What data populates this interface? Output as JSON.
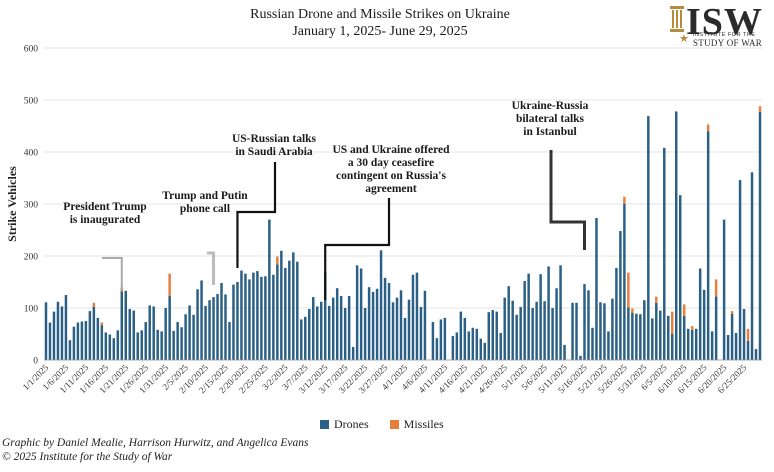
{
  "header": {
    "title_line1": "Russian Drone and Missile Strikes on Ukraine",
    "title_line2": "January 1, 2025- June 29, 2025"
  },
  "logo": {
    "main": "ISW",
    "sub1": "INSTITUTE FOR THE",
    "sub2": "STUDY OF WAR",
    "star": "★"
  },
  "legend": {
    "drones_label": "Drones",
    "missiles_label": "Missiles"
  },
  "credits": {
    "line1": "Graphic by Daniel Mealie, Harrison Hurwitz, and Angelica Evans",
    "line2": "© 2025 Institute for the Study of War"
  },
  "chart_data": {
    "type": "bar",
    "stacked": true,
    "ylabel": "Strike Vehicles",
    "ylim": [
      0,
      600
    ],
    "yticks": [
      0,
      100,
      200,
      300,
      400,
      500,
      600
    ],
    "start_date": "2025-01-01",
    "x_tick_labels": [
      "1/1/2025",
      "1/6/2025",
      "1/11/2025",
      "1/16/2025",
      "1/21/2025",
      "1/26/2025",
      "1/31/2025",
      "2/5/2025",
      "2/10/2025",
      "2/15/2025",
      "2/20/2025",
      "2/25/2025",
      "3/2/2025",
      "3/7/2025",
      "3/12/2025",
      "3/17/2025",
      "3/22/2025",
      "3/27/2025",
      "4/1/2025",
      "4/6/2025",
      "4/11/2025",
      "4/16/2025",
      "4/21/2025",
      "4/26/2025",
      "5/1/2025",
      "5/6/2025",
      "5/11/2025",
      "5/16/2025",
      "5/21/2025",
      "5/26/2025",
      "5/31/2025",
      "6/5/2025",
      "6/10/2025",
      "6/15/2025",
      "6/20/2025",
      "6/25/2025"
    ],
    "colors": {
      "drones": "#2a5f86",
      "missiles": "#e67e3c"
    },
    "series": [
      {
        "name": "Drones",
        "values": [
          111,
          72,
          93,
          112,
          103,
          125,
          38,
          64,
          72,
          74,
          75,
          94,
          102,
          81,
          67,
          53,
          49,
          42,
          57,
          132,
          133,
          98,
          95,
          53,
          57,
          73,
          105,
          103,
          58,
          55,
          100,
          123,
          56,
          73,
          63,
          88,
          105,
          87,
          136,
          153,
          104,
          115,
          121,
          127,
          148,
          126,
          73,
          145,
          150,
          172,
          166,
          155,
          168,
          171,
          160,
          161,
          270,
          164,
          184,
          210,
          177,
          191,
          207,
          189,
          78,
          83,
          98,
          121,
          103,
          112,
          168,
          104,
          120,
          138,
          123,
          100,
          123,
          25,
          182,
          176,
          100,
          140,
          131,
          137,
          211,
          158,
          148,
          111,
          120,
          134,
          81,
          116,
          164,
          168,
          102,
          133,
          0,
          73,
          42,
          78,
          81,
          0,
          46,
          53,
          93,
          81,
          55,
          62,
          60,
          41,
          33,
          92,
          96,
          93,
          52,
          120,
          142,
          114,
          87,
          102,
          152,
          166,
          100,
          112,
          165,
          113,
          180,
          100,
          138,
          182,
          29,
          0,
          110,
          110,
          8,
          146,
          134,
          62,
          273,
          111,
          109,
          55,
          118,
          177,
          248,
          300,
          101,
          91,
          89,
          88,
          115,
          469,
          80,
          110,
          95,
          408,
          85,
          50,
          478,
          317,
          85,
          60,
          58,
          60,
          176,
          135,
          440,
          55,
          122,
          0,
          270,
          48,
          89,
          52,
          346,
          98,
          37,
          361,
          21,
          477
        ]
      },
      {
        "name": "Missiles",
        "values": [
          0,
          0,
          0,
          0,
          0,
          0,
          0,
          0,
          0,
          0,
          0,
          0,
          8,
          0,
          5,
          0,
          0,
          0,
          0,
          8,
          0,
          0,
          0,
          0,
          0,
          0,
          0,
          0,
          0,
          0,
          0,
          43,
          0,
          0,
          0,
          0,
          0,
          0,
          0,
          0,
          0,
          0,
          0,
          0,
          0,
          0,
          0,
          0,
          0,
          0,
          0,
          0,
          0,
          0,
          0,
          0,
          0,
          0,
          15,
          0,
          0,
          0,
          0,
          0,
          0,
          0,
          0,
          0,
          0,
          0,
          0,
          0,
          0,
          0,
          0,
          0,
          0,
          0,
          0,
          0,
          0,
          0,
          0,
          0,
          0,
          0,
          0,
          0,
          0,
          0,
          0,
          0,
          0,
          0,
          0,
          0,
          0,
          0,
          0,
          0,
          0,
          0,
          0,
          0,
          0,
          0,
          0,
          0,
          0,
          0,
          0,
          0,
          0,
          0,
          0,
          0,
          0,
          0,
          0,
          0,
          0,
          0,
          0,
          0,
          0,
          0,
          0,
          0,
          0,
          0,
          0,
          0,
          0,
          0,
          0,
          0,
          0,
          0,
          0,
          0,
          0,
          0,
          0,
          0,
          0,
          14,
          67,
          8,
          0,
          0,
          0,
          0,
          0,
          12,
          0,
          0,
          0,
          43,
          0,
          0,
          22,
          0,
          7,
          0,
          0,
          0,
          13,
          0,
          33,
          0,
          0,
          0,
          5,
          0,
          0,
          0,
          23,
          0,
          0,
          11,
          0,
          60
        ]
      }
    ],
    "annotations": [
      {
        "text": [
          "President Trump",
          "is inaugurated"
        ],
        "date_index": 19
      },
      {
        "text": [
          "Trump and Putin",
          "phone call"
        ],
        "date_index": 42
      },
      {
        "text": [
          "US-Russian talks",
          "in Saudi Arabia"
        ],
        "date_index": 48
      },
      {
        "text": [
          "US and Ukraine offered",
          "a 30 day ceasefire",
          "contingent on Russia's",
          "agreement"
        ],
        "date_index": 70
      },
      {
        "text": [
          "Ukraine-Russia",
          "bilateral talks",
          "in Istanbul"
        ],
        "date_index": 135
      }
    ]
  }
}
